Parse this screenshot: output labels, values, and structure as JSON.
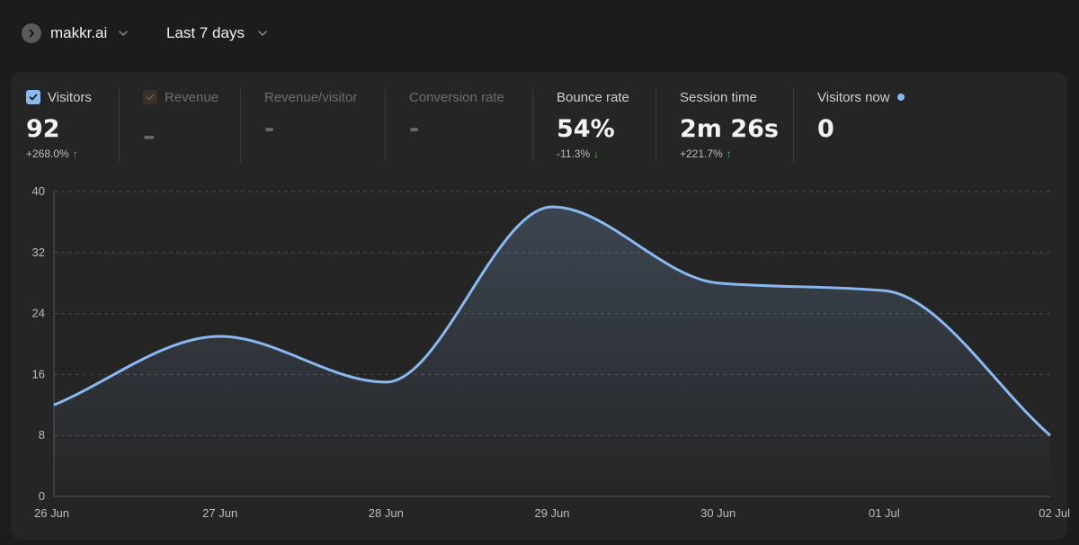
{
  "header": {
    "site_name": "makkr.ai",
    "period_label": "Last 7 days"
  },
  "metrics": [
    {
      "label": "Visitors",
      "value": "92",
      "change": "+268.0%",
      "direction": "up",
      "selected": true
    },
    {
      "label": "Revenue",
      "value": "–",
      "selected": false
    },
    {
      "label": "Revenue/visitor",
      "value": "-"
    },
    {
      "label": "Conversion rate",
      "value": "-"
    },
    {
      "label": "Bounce rate",
      "value": "54%",
      "change": "-11.3%",
      "direction": "down"
    },
    {
      "label": "Session time",
      "value": "2m 26s",
      "change": "+221.7%",
      "direction": "up"
    },
    {
      "label": "Visitors now",
      "value": "0"
    }
  ],
  "colors": {
    "accent": "#8ab8f0",
    "positive": "#4ec25f",
    "background": "#1c1c1c",
    "card": "#252525"
  },
  "chart_data": {
    "type": "area",
    "x": [
      "26 Jun",
      "27 Jun",
      "28 Jun",
      "29 Jun",
      "30 Jun",
      "01 Jul",
      "02 Jul"
    ],
    "series": [
      {
        "values": [
          12,
          21,
          15,
          38,
          28,
          27,
          8
        ]
      }
    ],
    "yticks": [
      "0",
      "8",
      "16",
      "24",
      "32",
      "40"
    ],
    "ylim": [
      0,
      40
    ],
    "grid": true,
    "xlabel": "",
    "ylabel": ""
  }
}
